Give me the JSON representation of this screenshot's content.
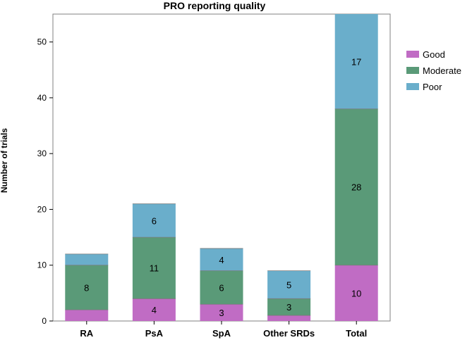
{
  "chart_data": {
    "type": "bar",
    "stacked": true,
    "title": "PRO reporting quality",
    "xlabel": "",
    "ylabel": "Number of trials",
    "ylim": [
      0,
      55
    ],
    "yticks": [
      0,
      10,
      20,
      30,
      40,
      50
    ],
    "categories": [
      "RA",
      "PsA",
      "SpA",
      "Other SRDs",
      "Total"
    ],
    "series": [
      {
        "name": "Good",
        "color": "#c06cc4",
        "values": [
          2,
          4,
          3,
          1,
          10
        ],
        "labels": [
          "",
          "4",
          "3",
          "",
          "10"
        ]
      },
      {
        "name": "Moderate",
        "color": "#5a9a78",
        "values": [
          8,
          11,
          6,
          3,
          28
        ],
        "labels": [
          "8",
          "11",
          "6",
          "3",
          "28"
        ]
      },
      {
        "name": "Poor",
        "color": "#6aaecb",
        "values": [
          2,
          6,
          4,
          5,
          17
        ],
        "labels": [
          "",
          "6",
          "4",
          "5",
          "17"
        ]
      }
    ],
    "legend_position": "right"
  }
}
